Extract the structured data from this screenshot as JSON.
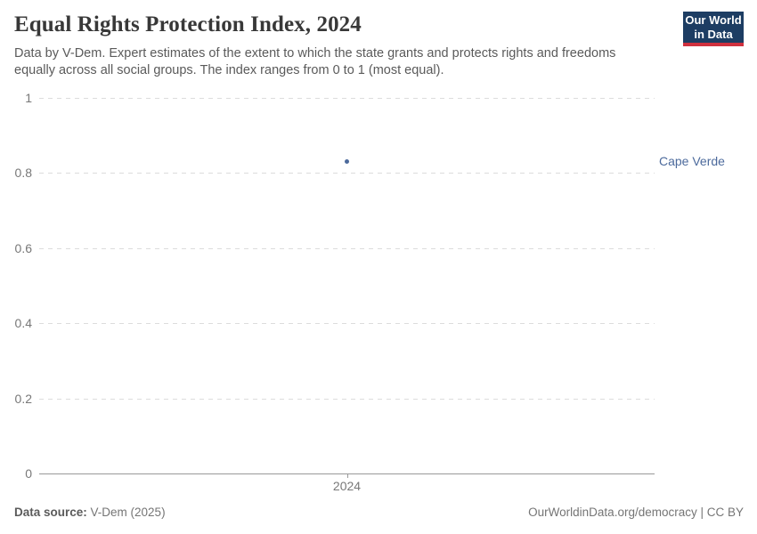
{
  "header": {
    "title": "Equal Rights Protection Index, 2024",
    "subtitle": "Data by V-Dem. Expert estimates of the extent to which the state grants and protects rights and freedoms equally across all social groups. The index ranges from 0 to 1 (most equal).",
    "logo": {
      "line1": "Our World",
      "line2": "in Data"
    }
  },
  "footer": {
    "source_label": "Data source:",
    "source_value": " V-Dem (2025)",
    "license": "OurWorldinData.org/democracy | CC BY"
  },
  "chart_data": {
    "type": "scatter",
    "title": "Equal Rights Protection Index, 2024",
    "x": [
      2024
    ],
    "xtick_labels": [
      "2024"
    ],
    "series": [
      {
        "name": "Cape Verde",
        "values": [
          0.83
        ]
      }
    ],
    "ylim": [
      0,
      1
    ],
    "yticks": [
      0,
      0.2,
      0.4,
      0.6,
      0.8,
      1
    ],
    "ytick_labels": [
      "0",
      "0.2",
      "0.4",
      "0.6",
      "0.8",
      "1"
    ],
    "xlabel": "",
    "ylabel": "",
    "grid": "horizontal-dashed",
    "legend_position": "label-right-of-plot"
  },
  "colors": {
    "series": "#4c6a9c",
    "entity_label": "#4c6a9c",
    "gridline": "#dcdcdc",
    "axis": "#999999",
    "logo_bg": "#1d3d63",
    "logo_stripe": "#cf303e"
  }
}
